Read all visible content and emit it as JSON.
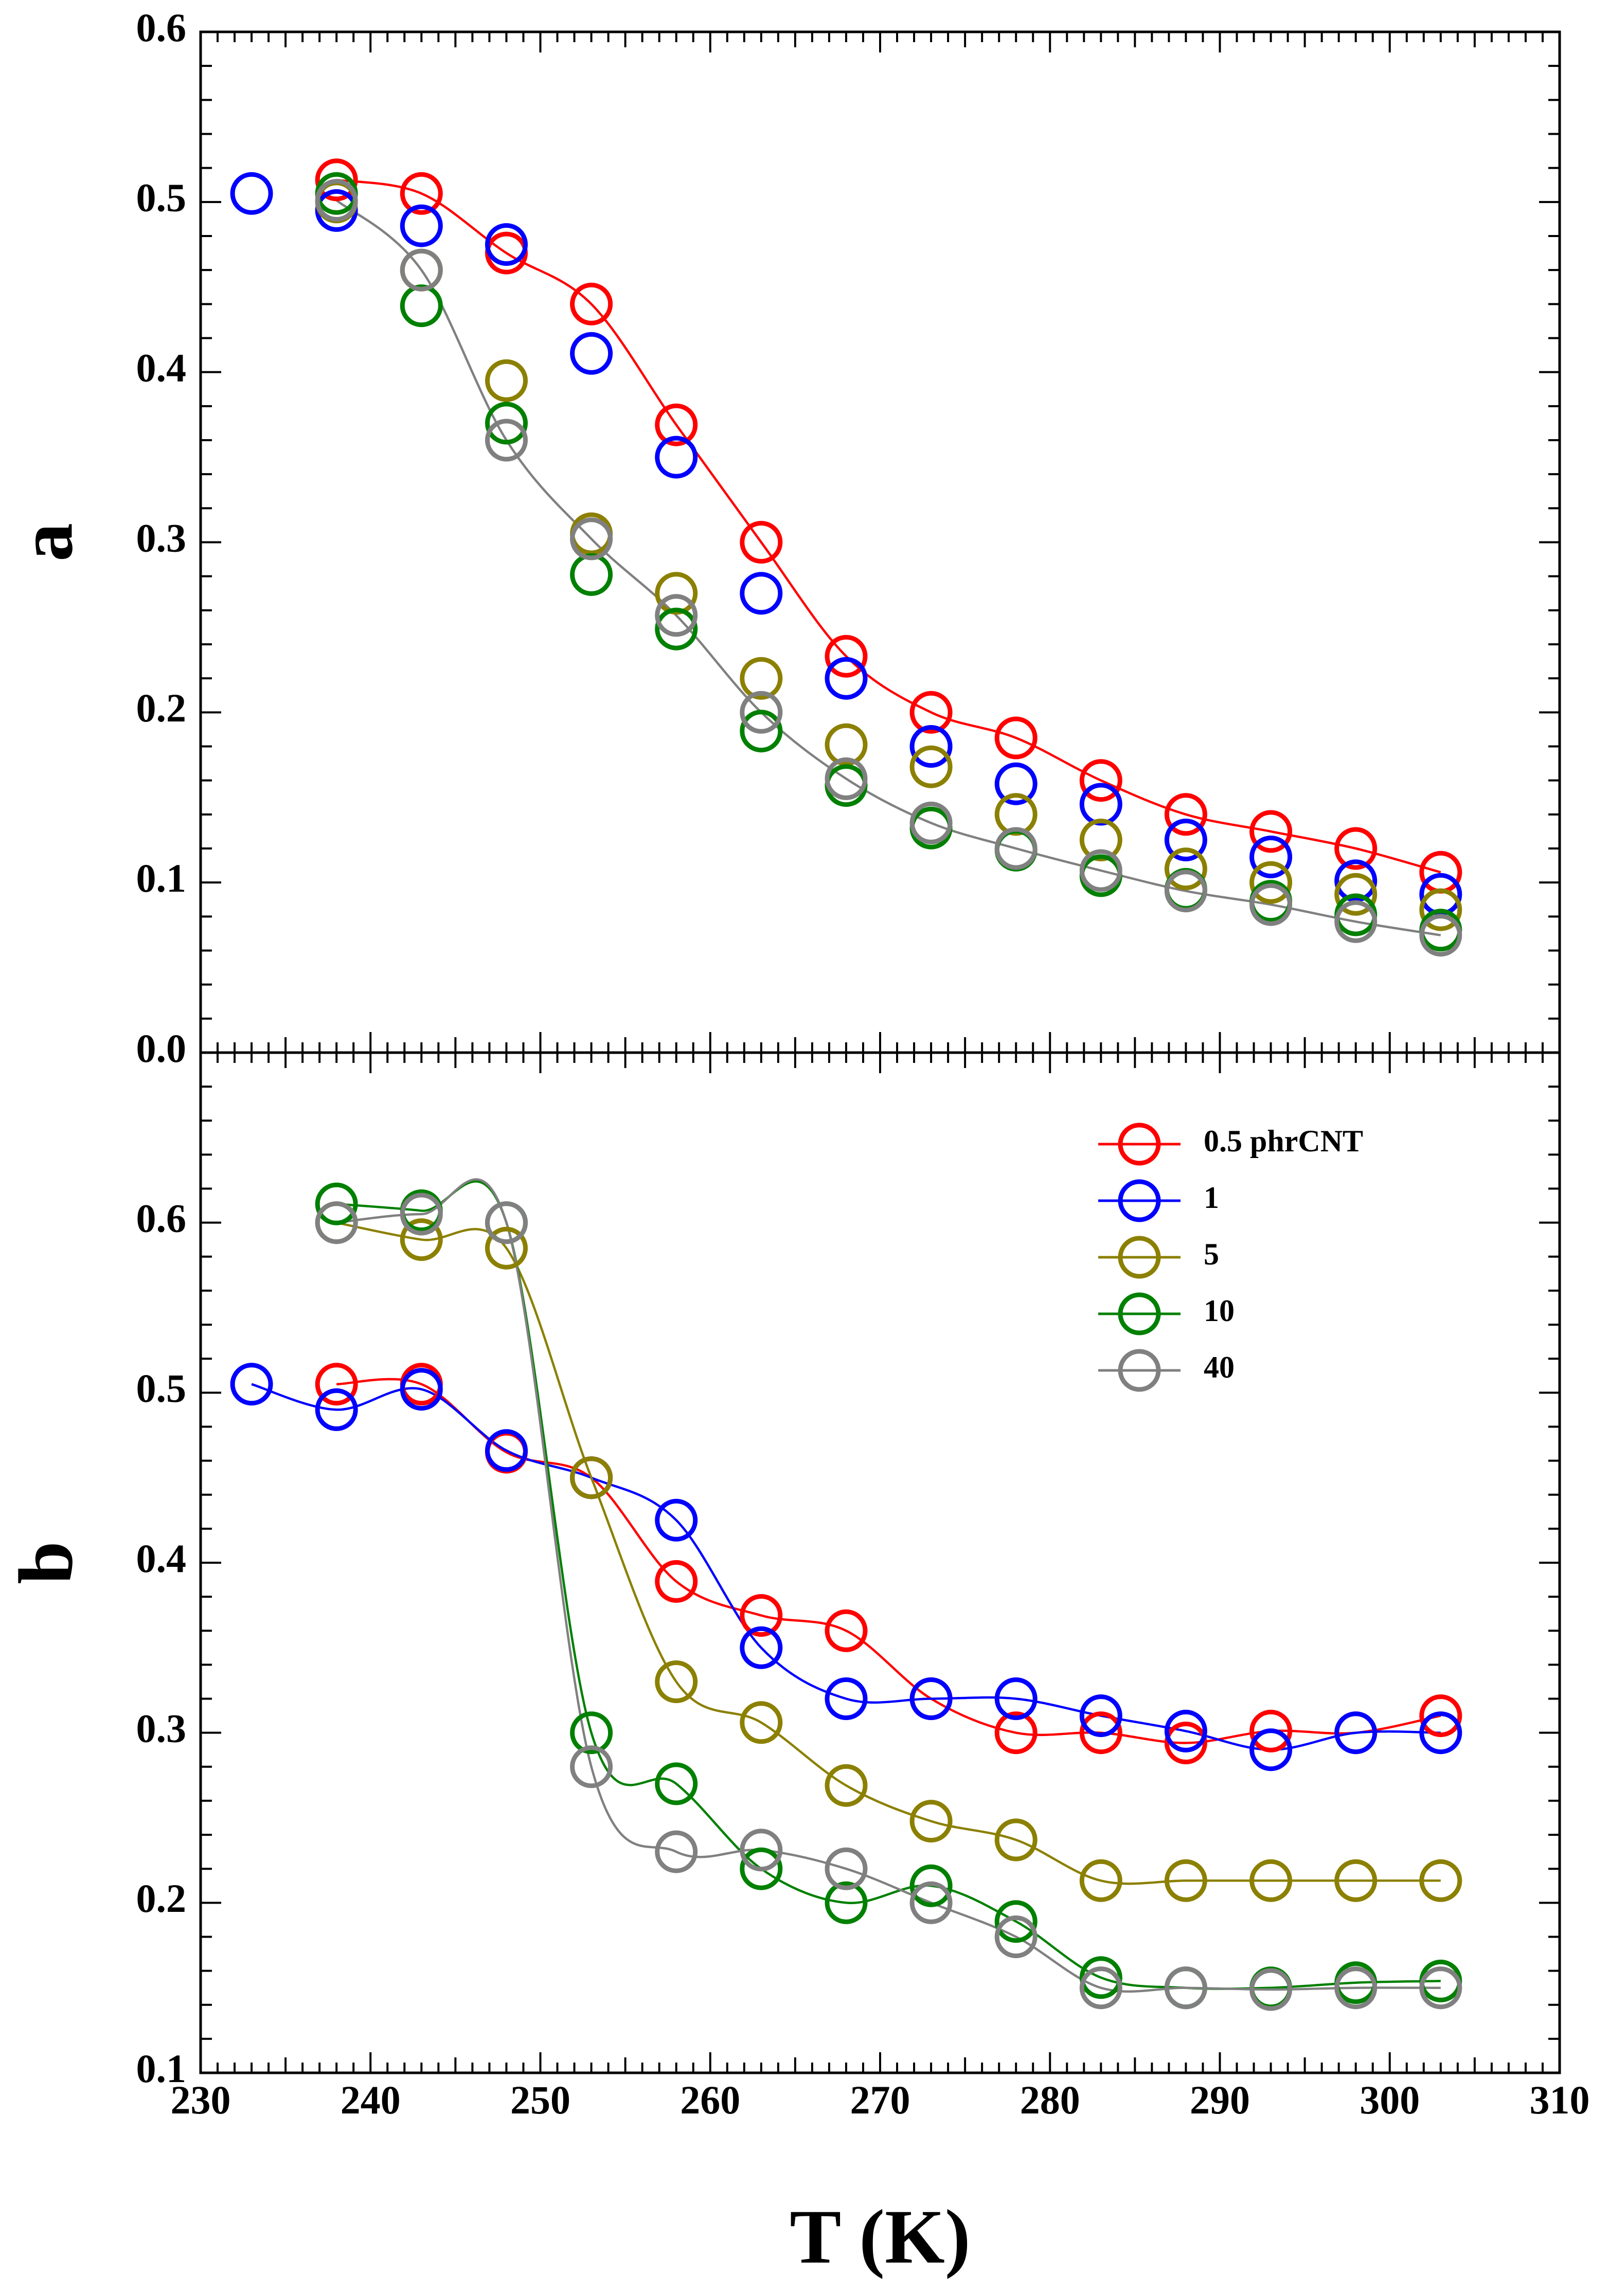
{
  "chart_data": {
    "type": "scatter",
    "shared_x_axis": {
      "xlabel": "T (K)",
      "xlim": [
        230,
        310
      ],
      "xticks": [
        230,
        240,
        250,
        260,
        270,
        280,
        290,
        300,
        310
      ],
      "xtick_labels": [
        "230",
        "240",
        "250",
        "260",
        "270",
        "280",
        "290",
        "300",
        "310"
      ]
    },
    "legend": {
      "location": "top-right of lower panel",
      "entries": [
        {
          "label": "0.5 phrCNT",
          "color": "#ff0000"
        },
        {
          "label": "1",
          "color": "#0000ff"
        },
        {
          "label": "5",
          "color": "#8b8000"
        },
        {
          "label": "10",
          "color": "#008000"
        },
        {
          "label": "40",
          "color": "#808080"
        }
      ]
    },
    "panels": [
      {
        "id": "a",
        "ylabel": "a",
        "ylim": [
          0.0,
          0.6
        ],
        "yticks": [
          0.0,
          0.1,
          0.2,
          0.3,
          0.4,
          0.5,
          0.6
        ],
        "ytick_labels": [
          "0.0",
          "0.1",
          "0.2",
          "0.3",
          "0.4",
          "0.5",
          "0.6"
        ],
        "series": [
          {
            "name": "0.5 phrCNT",
            "color": "#ff0000",
            "curve": true,
            "x": [
              238,
              243,
              248,
              253,
              258,
              263,
              268,
              273,
              278,
              283,
              288,
              293,
              298,
              303
            ],
            "y": [
              0.513,
              0.505,
              0.47,
              0.44,
              0.369,
              0.3,
              0.233,
              0.2,
              0.185,
              0.16,
              0.14,
              0.13,
              0.12,
              0.106
            ]
          },
          {
            "name": "1",
            "color": "#0000ff",
            "curve": false,
            "x": [
              233,
              238,
              243,
              248,
              253,
              258,
              263,
              268,
              273,
              278,
              283,
              288,
              293,
              298,
              303
            ],
            "y": [
              0.505,
              0.495,
              0.486,
              0.475,
              0.411,
              0.35,
              0.27,
              0.22,
              0.18,
              0.158,
              0.146,
              0.125,
              0.115,
              0.101,
              0.093
            ]
          },
          {
            "name": "5",
            "color": "#8b8000",
            "curve": false,
            "x": [
              238,
              243,
              248,
              253,
              258,
              263,
              268,
              273,
              278,
              283,
              288,
              293,
              298,
              303
            ],
            "y": [
              0.5,
              0.46,
              0.395,
              0.305,
              0.27,
              0.22,
              0.181,
              0.168,
              0.14,
              0.125,
              0.108,
              0.1,
              0.093,
              0.084
            ]
          },
          {
            "name": "10",
            "color": "#008000",
            "curve": false,
            "x": [
              238,
              243,
              248,
              253,
              258,
              263,
              268,
              273,
              278,
              283,
              288,
              293,
              298,
              303
            ],
            "y": [
              0.505,
              0.439,
              0.37,
              0.281,
              0.249,
              0.189,
              0.157,
              0.132,
              0.119,
              0.104,
              0.096,
              0.089,
              0.081,
              0.072
            ]
          },
          {
            "name": "40",
            "color": "#808080",
            "curve": true,
            "x": [
              238,
              243,
              248,
              253,
              258,
              263,
              268,
              273,
              278,
              283,
              288,
              293,
              298,
              303
            ],
            "y": [
              0.501,
              0.46,
              0.36,
              0.302,
              0.257,
              0.2,
              0.161,
              0.135,
              0.12,
              0.107,
              0.095,
              0.087,
              0.077,
              0.069
            ]
          }
        ]
      },
      {
        "id": "b",
        "ylabel": "b",
        "ylim": [
          0.1,
          0.7
        ],
        "yticks": [
          0.1,
          0.2,
          0.3,
          0.4,
          0.5,
          0.6
        ],
        "ytick_labels": [
          "0.1",
          "0.2",
          "0.3",
          "0.4",
          "0.5",
          "0.6"
        ],
        "series": [
          {
            "name": "0.5 phrCNT",
            "color": "#ff0000",
            "curve": true,
            "x": [
              238,
              243,
              248,
              253,
              258,
              263,
              268,
              273,
              278,
              283,
              288,
              293,
              298,
              303
            ],
            "y": [
              0.505,
              0.505,
              0.465,
              0.45,
              0.389,
              0.369,
              0.36,
              0.32,
              0.3,
              0.3,
              0.294,
              0.301,
              0.3,
              0.31
            ]
          },
          {
            "name": "1",
            "color": "#0000ff",
            "curve": true,
            "x": [
              233,
              238,
              243,
              248,
              253,
              258,
              263,
              268,
              273,
              278,
              283,
              288,
              293,
              298,
              303
            ],
            "y": [
              0.505,
              0.49,
              0.502,
              0.466,
              0.45,
              0.425,
              0.35,
              0.32,
              0.32,
              0.32,
              0.31,
              0.301,
              0.29,
              0.3,
              0.3
            ]
          },
          {
            "name": "5",
            "color": "#8b8000",
            "curve": true,
            "x": [
              238,
              243,
              248,
              253,
              258,
              263,
              268,
              273,
              278,
              283,
              288,
              293,
              298,
              303
            ],
            "y": [
              0.6,
              0.59,
              0.585,
              0.45,
              0.33,
              0.306,
              0.269,
              0.248,
              0.237,
              0.213,
              0.213,
              0.213,
              0.213,
              0.213
            ]
          },
          {
            "name": "10",
            "color": "#008000",
            "curve": true,
            "x": [
              238,
              243,
              248,
              253,
              258,
              263,
              268,
              273,
              278,
              283,
              288,
              293,
              298,
              303
            ],
            "y": [
              0.611,
              0.607,
              0.6,
              0.3,
              0.27,
              0.22,
              0.2,
              0.21,
              0.189,
              0.156,
              0.15,
              0.15,
              0.153,
              0.154
            ]
          },
          {
            "name": "40",
            "color": "#808080",
            "curve": true,
            "x": [
              238,
              243,
              248,
              253,
              258,
              263,
              268,
              273,
              278,
              283,
              288,
              293,
              298,
              303
            ],
            "y": [
              0.6,
              0.605,
              0.6,
              0.28,
              0.23,
              0.231,
              0.22,
              0.2,
              0.18,
              0.15,
              0.15,
              0.149,
              0.15,
              0.15
            ]
          }
        ]
      }
    ]
  }
}
